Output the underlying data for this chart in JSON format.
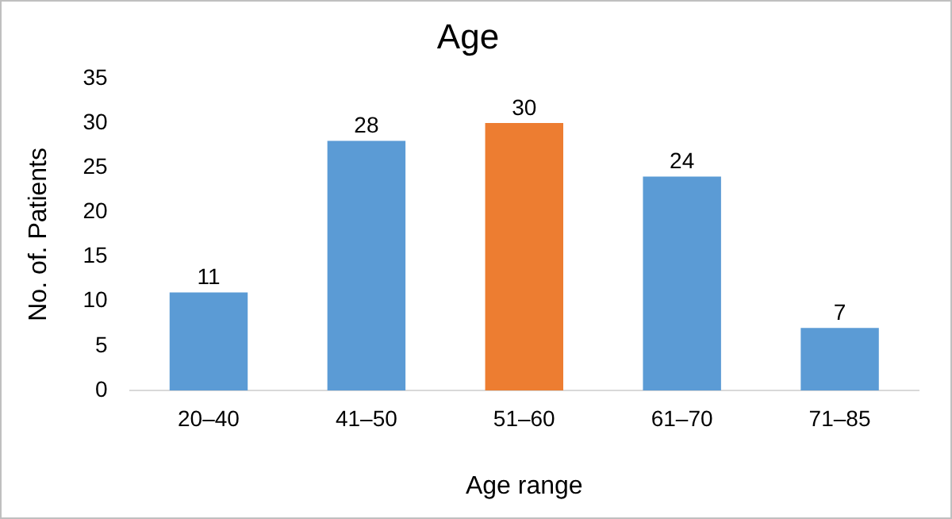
{
  "chart_data": {
    "type": "bar",
    "title": "Age",
    "xlabel": "Age range",
    "ylabel": "No. of. Patients",
    "categories": [
      "20–40",
      "41–50",
      "51–60",
      "61–70",
      "71–85"
    ],
    "values": [
      11,
      28,
      30,
      24,
      7
    ],
    "colors": [
      "#5b9bd5",
      "#5b9bd5",
      "#ed7d31",
      "#5b9bd5",
      "#5b9bd5"
    ],
    "ylim": [
      0,
      35
    ],
    "yticks": [
      0,
      5,
      10,
      15,
      20,
      25,
      30,
      35
    ],
    "grid": false,
    "legend": false,
    "data_labels": true
  }
}
